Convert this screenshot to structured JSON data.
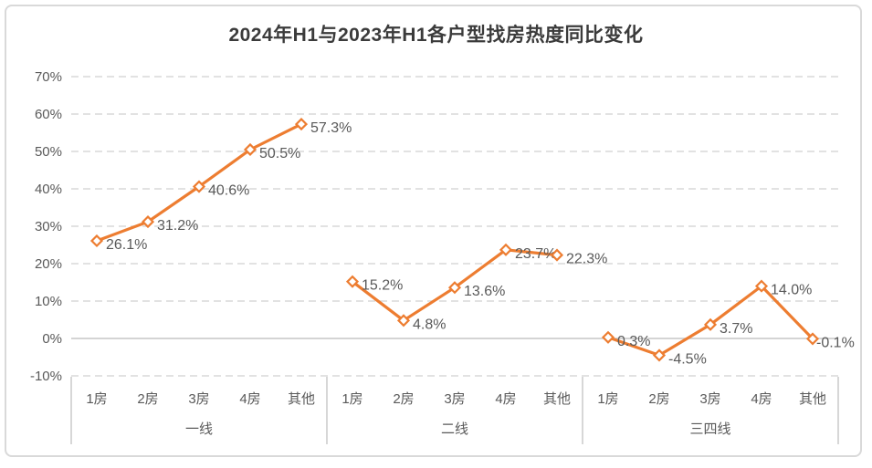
{
  "chart_data": {
    "type": "line",
    "title": "2024年H1与2023年H1各户型找房热度同比变化",
    "grid": "horizontal-dashed",
    "legend_position": "none",
    "ylim": [
      -10,
      70
    ],
    "y_axis": {
      "ticks": [
        {
          "label": "70%",
          "value": 70
        },
        {
          "label": "60%",
          "value": 60
        },
        {
          "label": "50%",
          "value": 50
        },
        {
          "label": "40%",
          "value": 40
        },
        {
          "label": "30%",
          "value": 30
        },
        {
          "label": "20%",
          "value": 20
        },
        {
          "label": "10%",
          "value": 10
        },
        {
          "label": "0%",
          "value": 0
        },
        {
          "label": "-10%",
          "value": -10
        }
      ]
    },
    "groups": [
      {
        "label": "一线",
        "categories": [
          "1房",
          "2房",
          "3房",
          "4房",
          "其他"
        ],
        "values": [
          26.1,
          31.2,
          40.6,
          50.5,
          57.3
        ],
        "point_labels": [
          "26.1%",
          "31.2%",
          "40.6%",
          "50.5%",
          "57.3%"
        ]
      },
      {
        "label": "二线",
        "categories": [
          "1房",
          "2房",
          "3房",
          "4房",
          "其他"
        ],
        "values": [
          15.2,
          4.8,
          13.6,
          23.7,
          22.3
        ],
        "point_labels": [
          "15.2%",
          "4.8%",
          "13.6%",
          "23.7%",
          "22.3%"
        ]
      },
      {
        "label": "三四线",
        "categories": [
          "1房",
          "2房",
          "3房",
          "4房",
          "其他"
        ],
        "values": [
          0.3,
          -4.5,
          3.7,
          14.0,
          -0.1
        ],
        "point_labels": [
          "0.3%",
          "-4.5%",
          "3.7%",
          "14.0%",
          "-0.1%"
        ]
      }
    ],
    "colors": {
      "line": "#ED7D31",
      "marker_fill": "#FFFFFF",
      "grid": "#D9D9D9",
      "axis_line": "#C6C6C6",
      "text": "#595959",
      "title": "#3B3B3B",
      "background": "#FFFFFF",
      "border": "#D9D9D9"
    }
  }
}
